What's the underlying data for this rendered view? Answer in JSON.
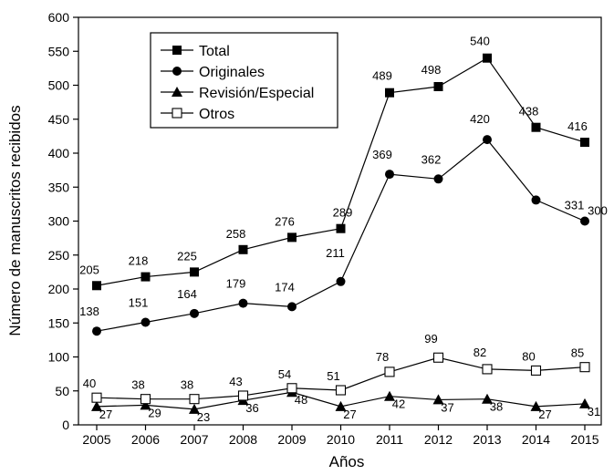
{
  "chart_data": {
    "type": "line",
    "title": "",
    "xlabel": "Años",
    "ylabel": "Número de manuscritos recibidos",
    "x": [
      "2005",
      "2006",
      "2007",
      "2008",
      "2009",
      "2010",
      "2011",
      "2012",
      "2013",
      "2014",
      "2015"
    ],
    "ylim": [
      0,
      600
    ],
    "yticks": [
      "0",
      "50",
      "100",
      "150",
      "200",
      "250",
      "300",
      "350",
      "400",
      "450",
      "500",
      "550",
      "600"
    ],
    "grid": false,
    "legend_position": "top-left",
    "series": [
      {
        "name": "Total",
        "marker": "square-filled",
        "values": [
          205,
          218,
          225,
          258,
          276,
          289,
          489,
          498,
          540,
          438,
          416
        ],
        "labels": [
          "205",
          "218",
          "225",
          "258",
          "276",
          "289",
          "489",
          "498",
          "540",
          "438",
          "416"
        ]
      },
      {
        "name": "Originales",
        "marker": "circle-filled",
        "values": [
          138,
          151,
          164,
          179,
          174,
          211,
          369,
          362,
          420,
          331,
          300
        ],
        "labels": [
          "138",
          "151",
          "164",
          "179",
          "174",
          "211",
          "369",
          "362",
          "420",
          "331",
          "300"
        ]
      },
      {
        "name": "Revisión/Especial",
        "marker": "triangle-filled",
        "values": [
          27,
          29,
          23,
          36,
          48,
          27,
          42,
          37,
          38,
          27,
          31
        ],
        "labels": [
          "27",
          "29",
          "23",
          "36",
          "48",
          "27",
          "42",
          "37",
          "38",
          "27",
          "31"
        ]
      },
      {
        "name": "Otros",
        "marker": "square-open",
        "values": [
          40,
          38,
          38,
          43,
          54,
          51,
          78,
          99,
          82,
          80,
          85
        ],
        "labels": [
          "40",
          "38",
          "38",
          "43",
          "54",
          "51",
          "78",
          "99",
          "82",
          "80",
          "85"
        ]
      }
    ],
    "colors": {
      "line": "#000000",
      "marker_fill": "#000000",
      "open_marker_fill": "#ffffff"
    }
  }
}
